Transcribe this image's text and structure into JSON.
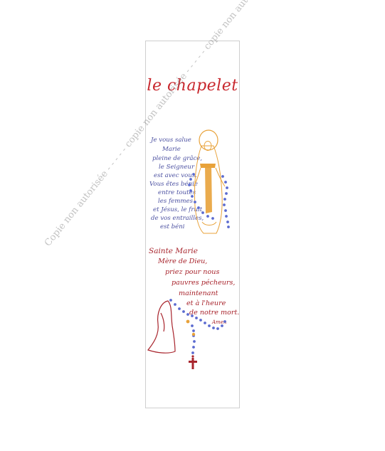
{
  "title": "le chapelet",
  "ave_maria_lines": [
    "Je vous salue",
    "Marie",
    "pleine de grâce,",
    "le Seigneur",
    "est avec vous.",
    "Vous êtes bénie",
    "entre toutes",
    "les femmes",
    "et Jésus, le fruit",
    "de vos entrailles,",
    "est béni"
  ],
  "sainte_marie_lines": [
    "Sainte Marie",
    "Mère de Dieu,",
    "priez pour nous",
    "pauvres pécheurs,",
    "maintenant",
    "et à l'heure",
    "de notre mort."
  ],
  "amen": "Amen",
  "watermark": "Copie non autorisée - - - - - copie non autorisée - - - - - copie non autorisée - - - - -",
  "colors": {
    "title": "#c8282e",
    "ave_text": "#4a4fa0",
    "sainte_text": "#a8242c",
    "beads": "#5b6bd0",
    "robe": "#e8a23a",
    "cross": "#a8242c"
  }
}
